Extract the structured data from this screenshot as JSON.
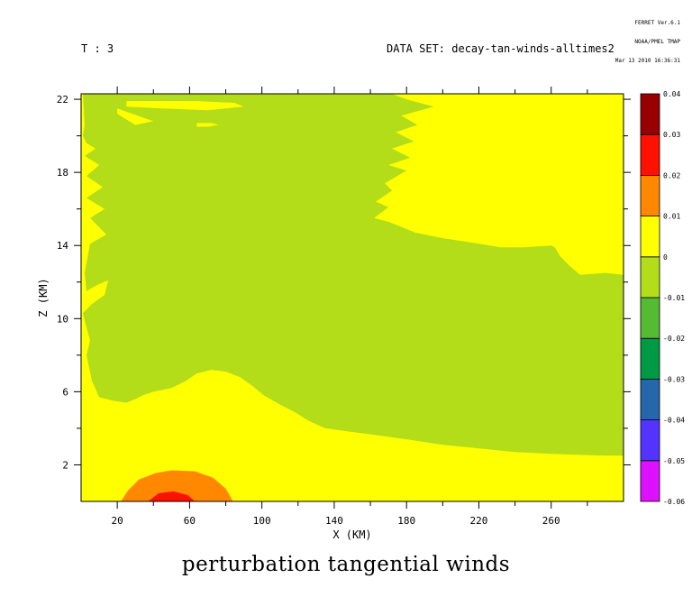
{
  "header": {
    "time_label": "T : 3",
    "dataset_label": "DATA SET: decay-tan-winds-alltimes2",
    "stamp_line1": "FERRET Ver.6.1",
    "stamp_line2": "NOAA/PMEL TMAP",
    "stamp_line3": "Mar 13 2010 16:36:31"
  },
  "chart_data": {
    "type": "heatmap",
    "title": "perturbation tangential winds",
    "xlabel": "X (KM)",
    "ylabel": "Z (KM)",
    "xlim": [
      0,
      300
    ],
    "ylim": [
      0,
      22.3
    ],
    "x_ticks": [
      20,
      60,
      100,
      140,
      180,
      220,
      260
    ],
    "y_ticks": [
      2,
      6,
      10,
      14,
      18,
      22
    ],
    "colorbar": {
      "levels": [
        -0.06,
        -0.05,
        -0.04,
        -0.03,
        -0.02,
        -0.01,
        0,
        0.01,
        0.02,
        0.03,
        0.04
      ],
      "labels": [
        "-0.06",
        "-0.05",
        "-0.04",
        "-0.03",
        "-0.02",
        "-0.01",
        "0",
        "0.01",
        "0.02",
        "0.03",
        "0.04"
      ],
      "colors": [
        "#dd11ff",
        "#5533ff",
        "#2666aa",
        "#009944",
        "#55bb33",
        "#b2dd18",
        "#ffff00",
        "#ff8800",
        "#ff1100",
        "#990000"
      ]
    },
    "regions": [
      {
        "level": "0 to 0.01",
        "color": "#ffff00",
        "polygon": [
          [
            0,
            0
          ],
          [
            300,
            0
          ],
          [
            300,
            22.3
          ],
          [
            0,
            22.3
          ]
        ]
      },
      {
        "level": "-0.01 to 0",
        "color": "#b2dd18",
        "polygon": [
          [
            1,
            22.3
          ],
          [
            2,
            20.6
          ],
          [
            1,
            20.0
          ],
          [
            3,
            19.6
          ],
          [
            8,
            19.3
          ],
          [
            2,
            18.9
          ],
          [
            10,
            18.4
          ],
          [
            3,
            17.8
          ],
          [
            12,
            17.2
          ],
          [
            3,
            16.6
          ],
          [
            13,
            16.0
          ],
          [
            5,
            15.5
          ],
          [
            14,
            14.6
          ],
          [
            5,
            14.1
          ],
          [
            2,
            12.5
          ],
          [
            3,
            11.5
          ],
          [
            8,
            11.8
          ],
          [
            15,
            12.1
          ],
          [
            13,
            11.3
          ],
          [
            6,
            10.8
          ],
          [
            1,
            10.3
          ],
          [
            3,
            9.5
          ],
          [
            5,
            8.8
          ],
          [
            3,
            8.0
          ],
          [
            6,
            6.6
          ],
          [
            10,
            5.7
          ],
          [
            18,
            5.5
          ],
          [
            25,
            5.4
          ],
          [
            30,
            5.6
          ],
          [
            34,
            5.8
          ],
          [
            40,
            6.0
          ],
          [
            50,
            6.2
          ],
          [
            58,
            6.6
          ],
          [
            64,
            7.0
          ],
          [
            72,
            7.2
          ],
          [
            80,
            7.1
          ],
          [
            88,
            6.8
          ],
          [
            95,
            6.3
          ],
          [
            101,
            5.8
          ],
          [
            110,
            5.3
          ],
          [
            118,
            4.9
          ],
          [
            126,
            4.4
          ],
          [
            135,
            4.0
          ],
          [
            150,
            3.8
          ],
          [
            165,
            3.6
          ],
          [
            180,
            3.4
          ],
          [
            200,
            3.1
          ],
          [
            220,
            2.9
          ],
          [
            240,
            2.7
          ],
          [
            260,
            2.6
          ],
          [
            290,
            2.5
          ],
          [
            300,
            2.5
          ],
          [
            300,
            12.4
          ],
          [
            290,
            12.5
          ],
          [
            276,
            12.4
          ],
          [
            270,
            12.9
          ],
          [
            265,
            13.4
          ],
          [
            262,
            13.9
          ],
          [
            260,
            14.0
          ],
          [
            245,
            13.9
          ],
          [
            232,
            13.9
          ],
          [
            220,
            14.1
          ],
          [
            200,
            14.4
          ],
          [
            185,
            14.7
          ],
          [
            170,
            15.3
          ],
          [
            162,
            15.5
          ],
          [
            170,
            16.1
          ],
          [
            163,
            16.4
          ],
          [
            172,
            17.0
          ],
          [
            168,
            17.4
          ],
          [
            180,
            18.1
          ],
          [
            170,
            18.4
          ],
          [
            182,
            18.8
          ],
          [
            172,
            19.3
          ],
          [
            184,
            19.7
          ],
          [
            174,
            20.2
          ],
          [
            186,
            20.6
          ],
          [
            177,
            21.1
          ],
          [
            195,
            21.6
          ],
          [
            180,
            22.0
          ],
          [
            172,
            22.3
          ]
        ]
      },
      {
        "level": "0 to 0.01",
        "color": "#ffff00",
        "polygon": [
          [
            20,
            21.2
          ],
          [
            30,
            20.6
          ],
          [
            40,
            20.8
          ],
          [
            20,
            21.5
          ]
        ]
      },
      {
        "level": "0 to 0.01",
        "color": "#ffff00",
        "polygon": [
          [
            25,
            21.9
          ],
          [
            45,
            21.9
          ],
          [
            65,
            21.9
          ],
          [
            85,
            21.8
          ],
          [
            90,
            21.6
          ],
          [
            70,
            21.4
          ],
          [
            45,
            21.5
          ],
          [
            25,
            21.6
          ]
        ]
      },
      {
        "level": "0 to 0.01",
        "color": "#ffff00",
        "polygon": [
          [
            64,
            20.7
          ],
          [
            72,
            20.7
          ],
          [
            76,
            20.6
          ],
          [
            70,
            20.5
          ],
          [
            64,
            20.5
          ]
        ]
      },
      {
        "level": "0 to 0.01",
        "color": "#ffff00",
        "polygon": [
          [
            290,
            21.3
          ],
          [
            300,
            21.0
          ],
          [
            300,
            21.5
          ]
        ]
      },
      {
        "level": "0.01 to 0.02",
        "color": "#ff8800",
        "polygon": [
          [
            22,
            0
          ],
          [
            84,
            0
          ],
          [
            80,
            0.7
          ],
          [
            73,
            1.3
          ],
          [
            63,
            1.65
          ],
          [
            50,
            1.7
          ],
          [
            41,
            1.55
          ],
          [
            32,
            1.2
          ],
          [
            26,
            0.6
          ]
        ]
      },
      {
        "level": "0.02 to 0.03",
        "color": "#ff1100",
        "polygon": [
          [
            37,
            0
          ],
          [
            63,
            0
          ],
          [
            59,
            0.35
          ],
          [
            51,
            0.55
          ],
          [
            43,
            0.45
          ]
        ]
      }
    ]
  }
}
